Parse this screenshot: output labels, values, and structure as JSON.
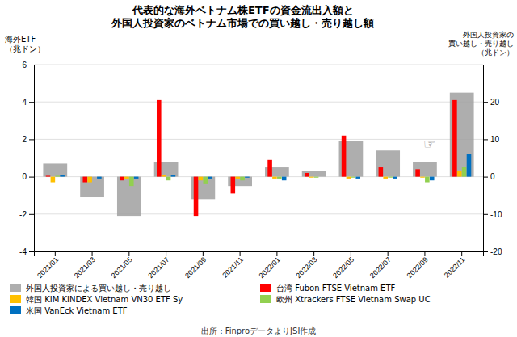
{
  "chart_data": {
    "type": "bar",
    "title": [
      "代表的な海外ベトナム株ETFの資金流出入額と",
      "外国人投資家のベトナム市場での買い越し・売り越し額"
    ],
    "ylabel": [
      "海外ETF",
      "（兆ドン）"
    ],
    "y2label": [
      "外国人投資家の",
      "買い越し・売り越し",
      "（兆ドン）"
    ],
    "source": "出所：FinproデータよりJSI作成",
    "annotation": "☞",
    "categories": [
      "2021/01",
      "2021/03",
      "2021/05",
      "2021/07",
      "2021/09",
      "2021/11",
      "2022/01",
      "2022/03",
      "2022/05",
      "2022/07",
      "2022/09",
      "2022/11"
    ],
    "series": [
      {
        "name": "外国人投資家による買い越し・売り越し",
        "color": "#A0A0A0",
        "axis": "y2",
        "values": [
          3.5,
          -5.5,
          -10.5,
          4.0,
          -6.0,
          -2.5,
          2.5,
          1.5,
          9.5,
          7.0,
          4.0,
          22.5
        ]
      },
      {
        "name": "台湾 Fubon FTSE Vietnam ETF",
        "color": "#FF0000",
        "values": [
          0.05,
          -0.3,
          -0.2,
          4.1,
          -2.1,
          -0.9,
          0.9,
          0.2,
          2.2,
          0.5,
          0.4,
          4.1
        ]
      },
      {
        "name": "韓国 KIM KINDEX Vietnam VN30 ETF Sy",
        "color": "#FFC000",
        "values": [
          -0.3,
          -0.3,
          -0.1,
          0.1,
          -0.2,
          -0.1,
          -0.1,
          -0.05,
          -0.1,
          -0.1,
          -0.05,
          0.3
        ]
      },
      {
        "name": "欧州 Xtrackers FTSE Vietnam Swap UC",
        "color": "#92D050",
        "values": [
          0.05,
          0.0,
          -0.5,
          -0.2,
          -0.4,
          -0.2,
          -0.1,
          -0.05,
          -0.05,
          -0.05,
          -0.3,
          0.5
        ]
      },
      {
        "name": "米国 VanEck Vietnam ETF",
        "color": "#0070C0",
        "values": [
          0.1,
          -0.1,
          -0.1,
          0.1,
          -0.1,
          -0.05,
          -0.2,
          0.0,
          -0.1,
          -0.1,
          -0.2,
          1.2
        ]
      }
    ],
    "ylim": [
      -4,
      6
    ],
    "yticks": [
      -4,
      -2,
      0,
      2,
      4,
      6
    ],
    "y2lim": [
      -20,
      30
    ],
    "y2ticks": [
      -20,
      -10,
      0,
      10,
      20
    ],
    "grid": true,
    "legend": "bottom"
  }
}
